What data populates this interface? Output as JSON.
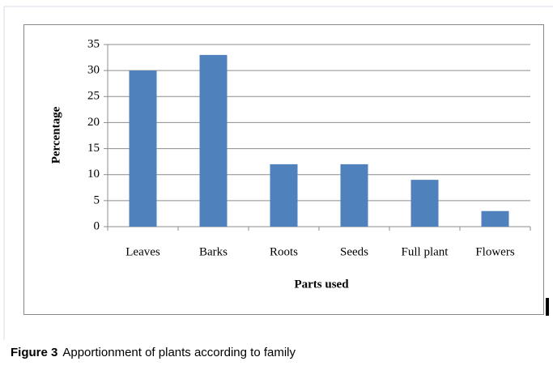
{
  "chart_data": {
    "type": "bar",
    "y_label": "Percentage",
    "x_label": "Parts used",
    "categories": [
      "Leaves",
      "Barks",
      "Roots",
      "Seeds",
      "Full plant",
      "Flowers"
    ],
    "values": [
      30,
      33,
      12,
      12,
      9,
      3
    ],
    "color": "#4f81bd",
    "ylim": [
      0,
      35
    ],
    "yticks": [
      0,
      5,
      10,
      15,
      20,
      25,
      30,
      35
    ],
    "grid": true
  },
  "caption": {
    "label": "Figure 3",
    "text": "Apportionment of plants according to family"
  }
}
